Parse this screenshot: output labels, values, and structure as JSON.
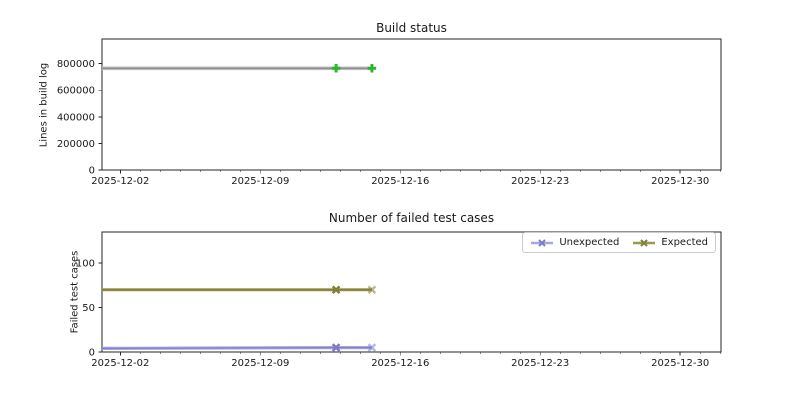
{
  "figure": {
    "background": "#ffffff",
    "text_color": "#1a1a1a",
    "frame_color": "#262626"
  },
  "chart_data": [
    {
      "type": "line",
      "title": "Build status",
      "ylabel": "Lines in build log",
      "xlabel": "",
      "xlim": [
        "2025-12-01T02:00",
        "2026-01-01T01:00"
      ],
      "ylim": [
        0,
        985000
      ],
      "grid": false,
      "y_ticks": [
        {
          "value": 0,
          "label": "0"
        },
        {
          "value": 200000,
          "label": "200000"
        },
        {
          "value": 400000,
          "label": "400000"
        },
        {
          "value": 600000,
          "label": "600000"
        },
        {
          "value": 800000,
          "label": "800000"
        }
      ],
      "x_ticks": [
        {
          "value": "2025-12-02",
          "label": "2025-12-02"
        },
        {
          "value": "2025-12-09",
          "label": "2025-12-09"
        },
        {
          "value": "2025-12-16",
          "label": "2025-12-16"
        },
        {
          "value": "2025-12-23",
          "label": "2025-12-23"
        },
        {
          "value": "2025-12-30",
          "label": "2025-12-30"
        }
      ],
      "x_minor_ticks": "daily",
      "series": [
        {
          "name": "Lines in build log",
          "band_color": "#bdbdbd",
          "band_width": 3.6,
          "line_color": "#8d8d8d",
          "line_width": 1.4,
          "marker": "plus",
          "marker_color": "#2db52d",
          "marker_size": 8.5,
          "points": [
            {
              "x": "2025-12-01T02:00",
              "y": 765000
            },
            {
              "x": "2025-12-12T19:00",
              "y": 765000,
              "marker": true
            },
            {
              "x": "2025-12-14T14:00",
              "y": 765000,
              "marker": true
            }
          ]
        }
      ],
      "legend": null
    },
    {
      "type": "line",
      "title": "Number of failed test cases",
      "ylabel": "Failed test cases",
      "xlabel": "",
      "xlim": [
        "2025-12-01T02:00",
        "2026-01-01T01:00"
      ],
      "ylim": [
        0,
        135
      ],
      "grid": false,
      "y_ticks": [
        {
          "value": 0,
          "label": "0"
        },
        {
          "value": 50,
          "label": "50"
        },
        {
          "value": 100,
          "label": "100"
        }
      ],
      "x_ticks": [
        {
          "value": "2025-12-02",
          "label": "2025-12-02"
        },
        {
          "value": "2025-12-09",
          "label": "2025-12-09"
        },
        {
          "value": "2025-12-16",
          "label": "2025-12-16"
        },
        {
          "value": "2025-12-23",
          "label": "2025-12-23"
        },
        {
          "value": "2025-12-30",
          "label": "2025-12-30"
        }
      ],
      "x_minor_ticks": "daily",
      "series": [
        {
          "name": "Unexpected",
          "band_color": "#a6a6e0",
          "band_width": 3.2,
          "line_color": "#8080cc",
          "line_width": 1.2,
          "marker": "x",
          "marker_color": "#7b7bc7",
          "marker_size": 8,
          "points": [
            {
              "x": "2025-12-01T02:00",
              "y": 4
            },
            {
              "x": "2025-12-12T19:00",
              "y": 5,
              "marker": true
            },
            {
              "x": "2025-12-14T14:00",
              "y": 5,
              "marker": true,
              "marker_opacity": 0.55
            }
          ]
        },
        {
          "name": "Expected",
          "band_color": "#9a9a4d",
          "band_width": 3.0,
          "line_color": "#83833a",
          "line_width": 1.6,
          "marker": "x",
          "marker_color": "#7f7f38",
          "marker_size": 8,
          "points": [
            {
              "x": "2025-12-01T02:00",
              "y": 70
            },
            {
              "x": "2025-12-12T19:00",
              "y": 70,
              "marker": true
            },
            {
              "x": "2025-12-14T14:00",
              "y": 70,
              "marker": true,
              "marker_opacity": 0.55
            }
          ]
        }
      ],
      "legend": {
        "position": "upper right",
        "entries": [
          {
            "label": "Unexpected",
            "series": "Unexpected"
          },
          {
            "label": "Expected",
            "series": "Expected"
          }
        ]
      }
    }
  ]
}
